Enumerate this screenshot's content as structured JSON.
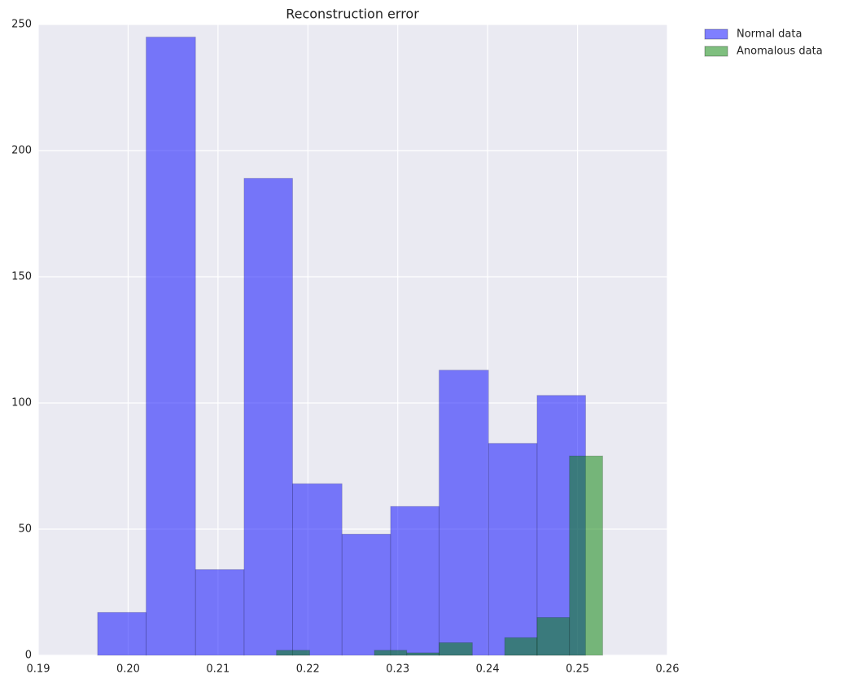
{
  "chart_data": {
    "type": "histogram",
    "title": "Reconstruction error",
    "series": [
      {
        "name": "Normal data",
        "color": "#0000ff",
        "bins": [
          0.1966,
          0.202,
          0.2075,
          0.2129,
          0.2183,
          0.2238,
          0.2292,
          0.2346,
          0.2401,
          0.2455,
          0.2509
        ],
        "values": [
          17,
          245,
          34,
          189,
          68,
          48,
          59,
          113,
          84,
          103
        ]
      },
      {
        "name": "Anomalous data",
        "color": "#008000",
        "bins": [
          0.2165,
          0.2202,
          0.2238,
          0.2274,
          0.231,
          0.2346,
          0.2383,
          0.2419,
          0.2455,
          0.2491,
          0.2528
        ],
        "values": [
          2,
          0,
          0,
          2,
          1,
          5,
          0,
          7,
          15,
          79
        ]
      }
    ],
    "alpha": 0.5,
    "xlim": [
      0.19,
      0.26
    ],
    "xticks": [
      0.19,
      {
        "value": 0.2,
        "label": "0.20"
      },
      0.21,
      0.22,
      0.23,
      0.24,
      0.25,
      0.26
    ],
    "ylim": [
      0,
      250
    ],
    "yticks": [
      0,
      50,
      100,
      150,
      200,
      250
    ],
    "grid": true,
    "legend": "outside-upper-right"
  }
}
